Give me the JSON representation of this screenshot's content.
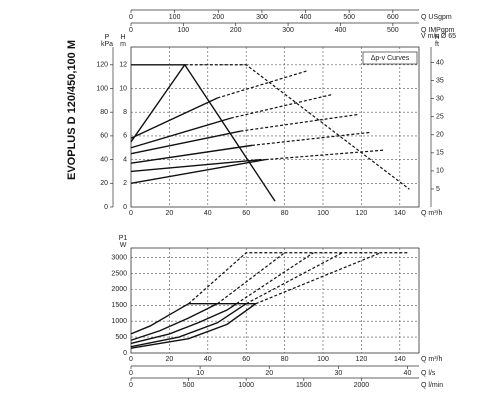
{
  "side_label": "EVOPLUS D 120/450,100 M",
  "chart_data": [
    {
      "type": "line",
      "legend_box": "Δp-v Curves",
      "x_label": "Q m³/h",
      "xlim": [
        0,
        150
      ],
      "xticks": [
        0,
        20,
        40,
        60,
        80,
        100,
        120,
        140
      ],
      "y_label": "H",
      "y_unit": "m",
      "ylim": [
        0,
        13.5
      ],
      "yticks": [
        0,
        2,
        4,
        6,
        8,
        10,
        12
      ],
      "left_axis": {
        "label": "P",
        "unit": "kPa",
        "lim": [
          0,
          135
        ],
        "ticks": [
          0,
          20,
          40,
          60,
          80,
          100,
          120
        ]
      },
      "right_axis": {
        "label": "H",
        "unit": "ft",
        "lim": [
          0,
          44.3
        ],
        "ticks": [
          5,
          10,
          15,
          20,
          25,
          30,
          35,
          40
        ]
      },
      "top_axes": [
        {
          "label": "Q USgpm",
          "lim": [
            0,
            660
          ],
          "ticks": [
            0,
            100,
            200,
            300,
            400,
            500,
            600
          ]
        },
        {
          "label": "Q IMPgpm",
          "lim": [
            0,
            550
          ],
          "ticks": [
            0,
            100,
            200,
            300,
            400,
            500
          ]
        },
        {
          "label": "V m/s Ø 65",
          "lim": [
            0,
            12.6
          ],
          "ticks": []
        }
      ],
      "grid": true,
      "series": [
        {
          "color": "#111111",
          "dash": false,
          "x": [
            0,
            28,
            75
          ],
          "values": [
            12,
            12,
            0.5
          ]
        },
        {
          "color": "#111111",
          "dash": false,
          "x": [
            0,
            28
          ],
          "values": [
            5.5,
            12
          ]
        },
        {
          "color": "#111111",
          "dash": false,
          "x": [
            0,
            45
          ],
          "values": [
            5.8,
            9.2
          ]
        },
        {
          "color": "#111111",
          "dash": false,
          "x": [
            0,
            52
          ],
          "values": [
            5,
            7.5
          ]
        },
        {
          "color": "#111111",
          "dash": false,
          "x": [
            0,
            57
          ],
          "values": [
            4.5,
            6.4
          ]
        },
        {
          "color": "#111111",
          "dash": false,
          "x": [
            0,
            63
          ],
          "values": [
            3.7,
            5.2
          ]
        },
        {
          "color": "#111111",
          "dash": false,
          "x": [
            0,
            68
          ],
          "values": [
            3,
            4
          ]
        },
        {
          "color": "#111111",
          "dash": false,
          "x": [
            0,
            70
          ],
          "values": [
            2,
            4
          ]
        },
        {
          "color": "#111111",
          "dash": true,
          "x": [
            28,
            60,
            145
          ],
          "values": [
            12,
            12,
            1.5
          ]
        },
        {
          "color": "#111111",
          "dash": true,
          "x": [
            45,
            92
          ],
          "values": [
            9.2,
            11.5
          ]
        },
        {
          "color": "#111111",
          "dash": true,
          "x": [
            52,
            105
          ],
          "values": [
            7.5,
            9.5
          ]
        },
        {
          "color": "#111111",
          "dash": true,
          "x": [
            57,
            118
          ],
          "values": [
            6.4,
            7.8
          ]
        },
        {
          "color": "#111111",
          "dash": true,
          "x": [
            63,
            125
          ],
          "values": [
            5.2,
            6.3
          ]
        },
        {
          "color": "#111111",
          "dash": true,
          "x": [
            70,
            132
          ],
          "values": [
            4,
            4.8
          ]
        }
      ]
    },
    {
      "type": "line",
      "x_label": "Q m³/h",
      "xlim": [
        0,
        150
      ],
      "xticks": [
        0,
        20,
        40,
        60,
        80,
        100,
        120,
        140
      ],
      "y_label": "P1",
      "y_unit": "W",
      "ylim": [
        0,
        3300
      ],
      "yticks": [
        0,
        500,
        1000,
        1500,
        2000,
        2500,
        3000
      ],
      "bottom_axes": [
        {
          "label": "Q l/s",
          "lim": [
            0,
            41.67
          ],
          "ticks": [
            0,
            10,
            20,
            30,
            40
          ]
        },
        {
          "label": "Q l/min",
          "lim": [
            0,
            2500
          ],
          "ticks": [
            0,
            500,
            1000,
            1500,
            2000
          ]
        }
      ],
      "grid": true,
      "series": [
        {
          "color": "#111111",
          "dash": false,
          "x": [
            0,
            10,
            20,
            30
          ],
          "values": [
            600,
            850,
            1200,
            1550
          ]
        },
        {
          "color": "#111111",
          "dash": false,
          "x": [
            0,
            15,
            30,
            40,
            45
          ],
          "values": [
            400,
            700,
            1100,
            1400,
            1550
          ]
        },
        {
          "color": "#111111",
          "dash": false,
          "x": [
            0,
            20,
            35,
            50,
            55
          ],
          "values": [
            300,
            600,
            950,
            1350,
            1550
          ]
        },
        {
          "color": "#111111",
          "dash": false,
          "x": [
            0,
            25,
            45,
            60
          ],
          "values": [
            200,
            500,
            950,
            1550
          ]
        },
        {
          "color": "#111111",
          "dash": false,
          "x": [
            0,
            30,
            50,
            65
          ],
          "values": [
            150,
            450,
            900,
            1550
          ]
        },
        {
          "color": "#111111",
          "dash": false,
          "x": [
            30,
            65
          ],
          "values": [
            1550,
            1550
          ]
        },
        {
          "color": "#111111",
          "dash": true,
          "x": [
            30,
            60,
            145
          ],
          "values": [
            1550,
            3150,
            3150
          ]
        },
        {
          "color": "#111111",
          "dash": true,
          "x": [
            45,
            80
          ],
          "values": [
            1550,
            3150
          ]
        },
        {
          "color": "#111111",
          "dash": true,
          "x": [
            55,
            95
          ],
          "values": [
            1550,
            3150
          ]
        },
        {
          "color": "#111111",
          "dash": true,
          "x": [
            60,
            110
          ],
          "values": [
            1550,
            3150
          ]
        },
        {
          "color": "#111111",
          "dash": true,
          "x": [
            65,
            130
          ],
          "values": [
            1550,
            3150
          ]
        }
      ]
    }
  ]
}
